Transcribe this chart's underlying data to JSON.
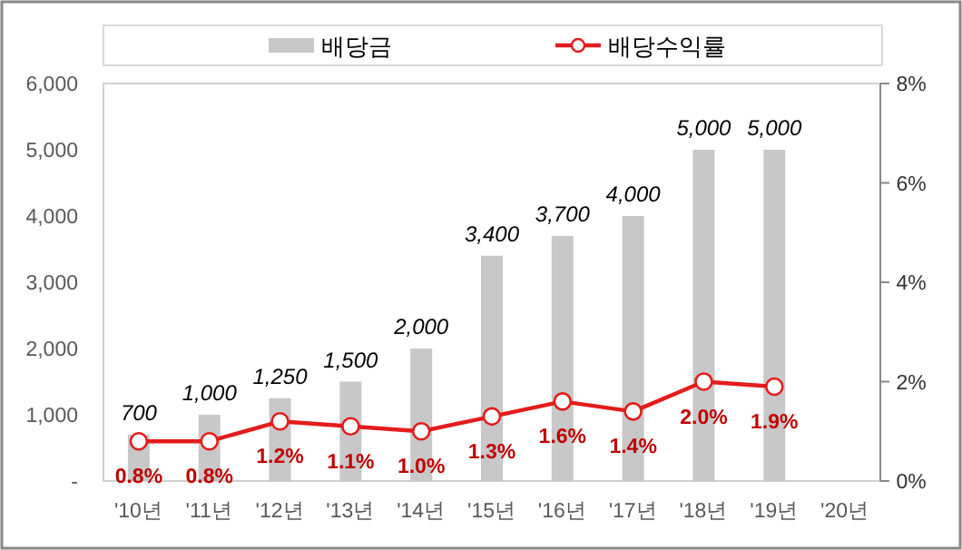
{
  "chart_data": {
    "type": "bar",
    "categories": [
      "'10년",
      "'11년",
      "'12년",
      "'13년",
      "'14년",
      "'15년",
      "'16년",
      "'17년",
      "'18년",
      "'19년",
      "'20년"
    ],
    "series": [
      {
        "name": "배당금",
        "color": "#c8c8c8",
        "values": [
          700,
          1000,
          1250,
          1500,
          2000,
          3400,
          3700,
          4000,
          5000,
          5000,
          null
        ],
        "value_labels": [
          "700",
          "1,000",
          "1,250",
          "1,500",
          "2,000",
          "3,400",
          "3,700",
          "4,000",
          "5,000",
          "5,000",
          null
        ]
      },
      {
        "name": "배당수익률",
        "type": "line",
        "axis": "y2",
        "color": "#e31c1c",
        "marker": "circle",
        "values": [
          0.8,
          0.8,
          1.2,
          1.1,
          1.0,
          1.3,
          1.6,
          1.4,
          2.0,
          1.9,
          null
        ],
        "value_labels": [
          "0.8%",
          "0.8%",
          "1.2%",
          "1.1%",
          "1.0%",
          "1.3%",
          "1.6%",
          "1.4%",
          "2.0%",
          "1.9%",
          null
        ]
      }
    ],
    "ylim": [
      0,
      6000
    ],
    "yticks": [
      {
        "value": 0,
        "label": "-"
      },
      {
        "value": 1000,
        "label": "1,000"
      },
      {
        "value": 2000,
        "label": "2,000"
      },
      {
        "value": 3000,
        "label": "3,000"
      },
      {
        "value": 4000,
        "label": "4,000"
      },
      {
        "value": 5000,
        "label": "5,000"
      },
      {
        "value": 6000,
        "label": "6,000"
      }
    ],
    "y2lim": [
      0,
      8
    ],
    "y2ticks": [
      {
        "value": 0,
        "label": "0%"
      },
      {
        "value": 2,
        "label": "2%"
      },
      {
        "value": 4,
        "label": "4%"
      },
      {
        "value": 6,
        "label": "6%"
      },
      {
        "value": 8,
        "label": "8%"
      }
    ],
    "legend": "top",
    "grid": false
  }
}
